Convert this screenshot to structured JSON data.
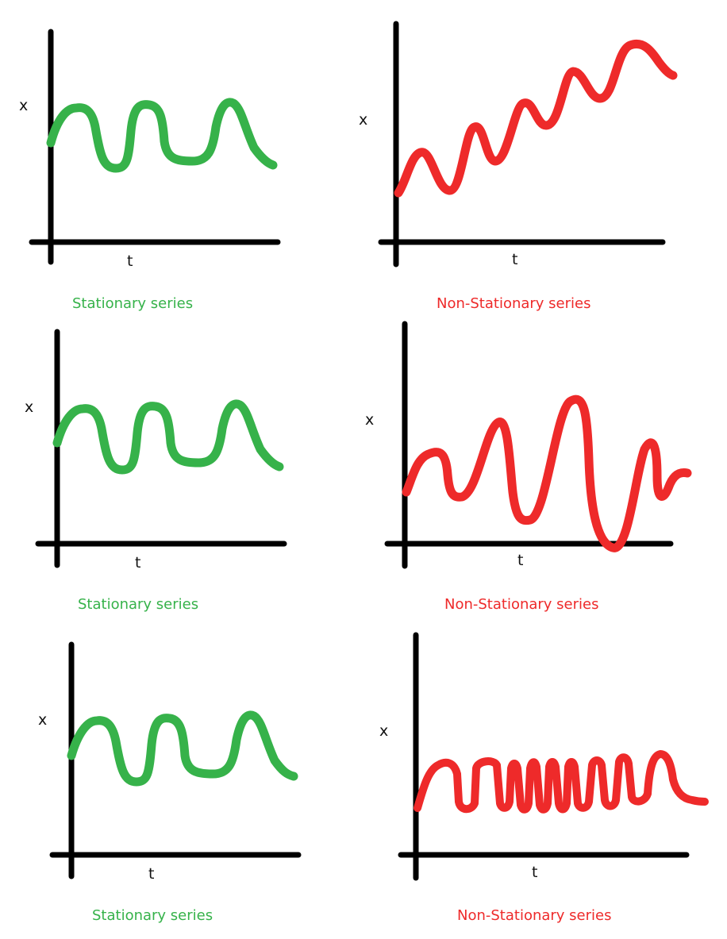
{
  "colors": {
    "stationary": "#36b24a",
    "non_stationary": "#ee2a2a",
    "axis": "#000000"
  },
  "panels": [
    {
      "id": "p1",
      "kind": "stationary",
      "x_label": "x",
      "t_label": "t",
      "caption": "Stationary series"
    },
    {
      "id": "p2",
      "kind": "non_stationary",
      "x_label": "x",
      "t_label": "t",
      "caption": "Non-Stationary series"
    },
    {
      "id": "p3",
      "kind": "stationary",
      "x_label": "x",
      "t_label": "t",
      "caption": "Stationary series"
    },
    {
      "id": "p4",
      "kind": "non_stationary",
      "x_label": "x",
      "t_label": "t",
      "caption": "Non-Stationary series"
    },
    {
      "id": "p5",
      "kind": "stationary",
      "x_label": "x",
      "t_label": "t",
      "caption": "Stationary series"
    },
    {
      "id": "p6",
      "kind": "non_stationary",
      "x_label": "x",
      "t_label": "t",
      "caption": "Non-Stationary series"
    }
  ]
}
